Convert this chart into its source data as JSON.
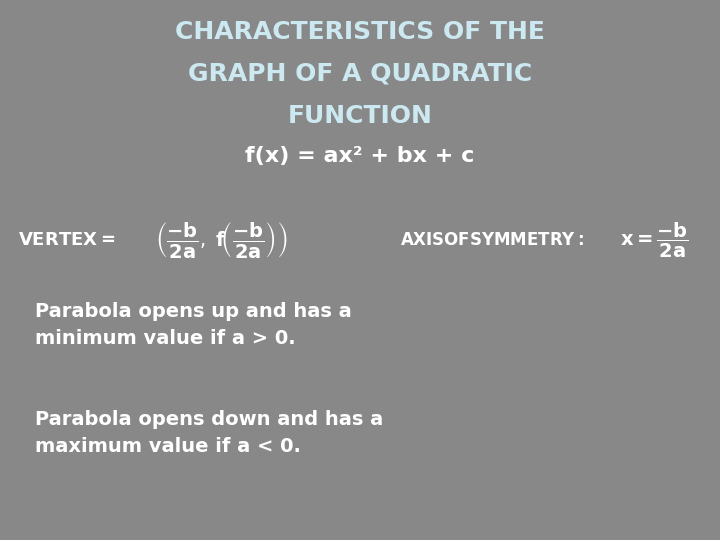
{
  "bg_color": "#888888",
  "title_lines": [
    "CHARACTERISTICS OF THE",
    "GRAPH OF A QUADRATIC",
    "FUNCTION"
  ],
  "title_color": "#cce8f0",
  "title_fontsize": 18,
  "subtitle": "f(x) = ax² + bx + c",
  "subtitle_color": "#ffffff",
  "subtitle_fontsize": 16,
  "formula_color": "#ffffff",
  "formula_fontsize": 13,
  "bullet1": "Parabola opens up and has a\nminimum value if a > 0.",
  "bullet2": "Parabola opens down and has a\nmaximum value if a < 0.",
  "bullet_color": "#ffffff",
  "bullet_fontsize": 14
}
